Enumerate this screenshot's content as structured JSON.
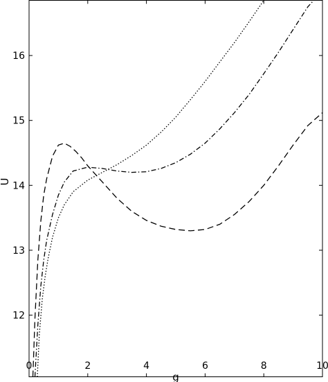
{
  "chart_data": {
    "type": "line",
    "title": "",
    "xlabel": "g",
    "ylabel": "U",
    "xlim": [
      0,
      10
    ],
    "ylim": [
      11.05,
      16.85
    ],
    "xticks": [
      0,
      2,
      4,
      6,
      8,
      10
    ],
    "xtick_labels": [
      "0",
      "2",
      "4",
      "6",
      "8",
      "10"
    ],
    "yticks": [
      12,
      13,
      14,
      15,
      16
    ],
    "ytick_labels": [
      "12",
      "13",
      "14",
      "15",
      "16"
    ],
    "grid": false,
    "legend": "none",
    "series": [
      {
        "style": "dashed",
        "color": "#000000",
        "x": [
          0.13,
          0.2,
          0.3,
          0.4,
          0.5,
          0.6,
          0.8,
          1.0,
          1.2,
          1.4,
          1.6,
          1.8,
          2.0,
          2.5,
          3.0,
          3.5,
          4.0,
          4.5,
          5.0,
          5.5,
          6.0,
          6.5,
          7.0,
          7.5,
          8.0,
          8.5,
          9.0,
          9.5,
          10.0
        ],
        "y": [
          11.05,
          11.95,
          12.85,
          13.45,
          13.85,
          14.1,
          14.45,
          14.62,
          14.65,
          14.6,
          14.52,
          14.42,
          14.3,
          14.05,
          13.8,
          13.6,
          13.46,
          13.37,
          13.32,
          13.3,
          13.32,
          13.4,
          13.55,
          13.75,
          14.0,
          14.3,
          14.62,
          14.92,
          15.12
        ]
      },
      {
        "style": "dashdot",
        "color": "#000000",
        "x": [
          0.2,
          0.3,
          0.4,
          0.5,
          0.6,
          0.8,
          1.0,
          1.2,
          1.5,
          2.0,
          2.5,
          3.0,
          3.5,
          4.0,
          4.5,
          5.0,
          5.5,
          6.0,
          6.5,
          7.0,
          7.5,
          8.0,
          8.5,
          9.0,
          9.5,
          9.7
        ],
        "y": [
          11.05,
          11.85,
          12.45,
          12.85,
          13.15,
          13.55,
          13.85,
          14.05,
          14.22,
          14.28,
          14.26,
          14.22,
          14.2,
          14.21,
          14.26,
          14.35,
          14.48,
          14.65,
          14.87,
          15.12,
          15.4,
          15.72,
          16.05,
          16.4,
          16.75,
          16.85
        ]
      },
      {
        "style": "dotted",
        "color": "#000000",
        "x": [
          0.28,
          0.35,
          0.45,
          0.55,
          0.65,
          0.8,
          1.0,
          1.2,
          1.5,
          2.0,
          2.5,
          3.0,
          3.5,
          4.0,
          4.5,
          5.0,
          5.5,
          6.0,
          6.5,
          7.0,
          7.5,
          8.0
        ],
        "y": [
          11.05,
          11.7,
          12.25,
          12.6,
          12.88,
          13.2,
          13.5,
          13.7,
          13.9,
          14.08,
          14.2,
          14.32,
          14.46,
          14.62,
          14.82,
          15.05,
          15.32,
          15.6,
          15.9,
          16.2,
          16.52,
          16.85
        ]
      }
    ]
  }
}
